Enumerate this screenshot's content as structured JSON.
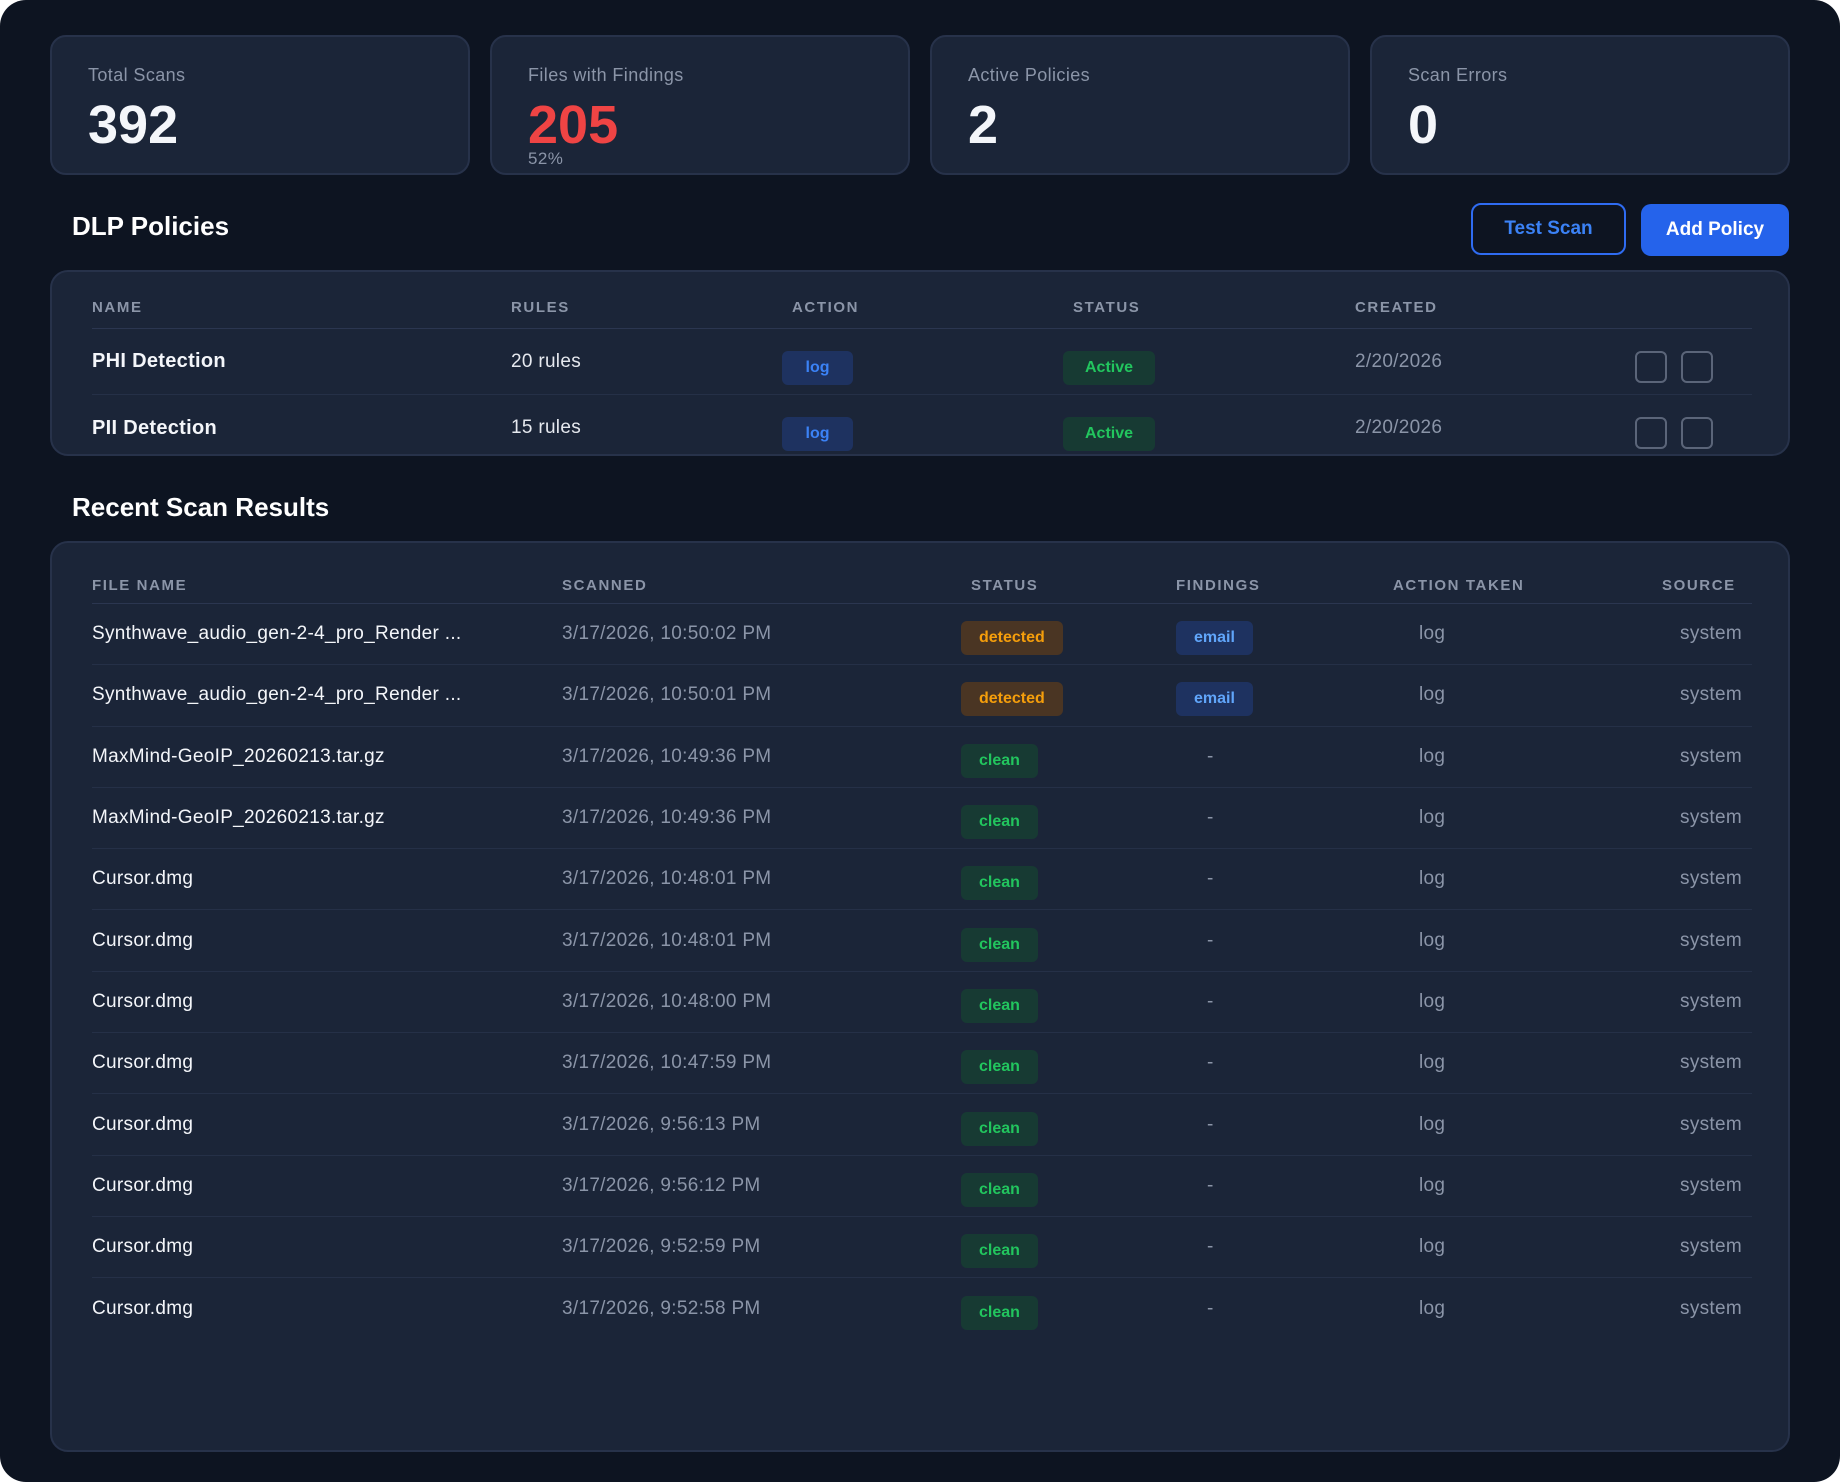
{
  "stats": [
    {
      "label": "Total Scans",
      "value": "392",
      "sub": ""
    },
    {
      "label": "Files with Findings",
      "value": "205",
      "sub": "52%"
    },
    {
      "label": "Active Policies",
      "value": "2",
      "sub": ""
    },
    {
      "label": "Scan Errors",
      "value": "0",
      "sub": ""
    }
  ],
  "policies": {
    "title": "DLP Policies",
    "test_scan_label": "Test Scan",
    "add_policy_label": "Add Policy",
    "columns": [
      "NAME",
      "RULES",
      "ACTION",
      "STATUS",
      "CREATED"
    ],
    "rows": [
      {
        "name": "PHI Detection",
        "rules": "20 rules",
        "action": "log",
        "status": "Active",
        "created": "2/20/2026"
      },
      {
        "name": "PII Detection",
        "rules": "15 rules",
        "action": "log",
        "status": "Active",
        "created": "2/20/2026"
      }
    ]
  },
  "scans": {
    "title": "Recent Scan Results",
    "columns": [
      "FILE NAME",
      "SCANNED",
      "STATUS",
      "FINDINGS",
      "ACTION TAKEN",
      "SOURCE"
    ],
    "rows": [
      {
        "file": "Synthwave_audio_gen-2-4_pro_Render ...",
        "scanned": "3/17/2026, 10:50:02 PM",
        "status": "detected",
        "findings": "email",
        "action": "log",
        "source": "system"
      },
      {
        "file": "Synthwave_audio_gen-2-4_pro_Render ...",
        "scanned": "3/17/2026, 10:50:01 PM",
        "status": "detected",
        "findings": "email",
        "action": "log",
        "source": "system"
      },
      {
        "file": "MaxMind-GeoIP_20260213.tar.gz",
        "scanned": "3/17/2026, 10:49:36 PM",
        "status": "clean",
        "findings": "-",
        "action": "log",
        "source": "system"
      },
      {
        "file": "MaxMind-GeoIP_20260213.tar.gz",
        "scanned": "3/17/2026, 10:49:36 PM",
        "status": "clean",
        "findings": "-",
        "action": "log",
        "source": "system"
      },
      {
        "file": "Cursor.dmg",
        "scanned": "3/17/2026, 10:48:01 PM",
        "status": "clean",
        "findings": "-",
        "action": "log",
        "source": "system"
      },
      {
        "file": "Cursor.dmg",
        "scanned": "3/17/2026, 10:48:01 PM",
        "status": "clean",
        "findings": "-",
        "action": "log",
        "source": "system"
      },
      {
        "file": "Cursor.dmg",
        "scanned": "3/17/2026, 10:48:00 PM",
        "status": "clean",
        "findings": "-",
        "action": "log",
        "source": "system"
      },
      {
        "file": "Cursor.dmg",
        "scanned": "3/17/2026, 10:47:59 PM",
        "status": "clean",
        "findings": "-",
        "action": "log",
        "source": "system"
      },
      {
        "file": "Cursor.dmg",
        "scanned": "3/17/2026, 9:56:13 PM",
        "status": "clean",
        "findings": "-",
        "action": "log",
        "source": "system"
      },
      {
        "file": "Cursor.dmg",
        "scanned": "3/17/2026, 9:56:12 PM",
        "status": "clean",
        "findings": "-",
        "action": "log",
        "source": "system"
      },
      {
        "file": "Cursor.dmg",
        "scanned": "3/17/2026, 9:52:59 PM",
        "status": "clean",
        "findings": "-",
        "action": "log",
        "source": "system"
      },
      {
        "file": "Cursor.dmg",
        "scanned": "3/17/2026, 9:52:58 PM",
        "status": "clean",
        "findings": "-",
        "action": "log",
        "source": "system"
      }
    ]
  },
  "colors": {
    "background": "#0d1421",
    "panel": "#1b2538",
    "accent": "#2563eb",
    "danger": "#ef4444",
    "success": "#22c55e",
    "warning": "#f59e0b"
  }
}
